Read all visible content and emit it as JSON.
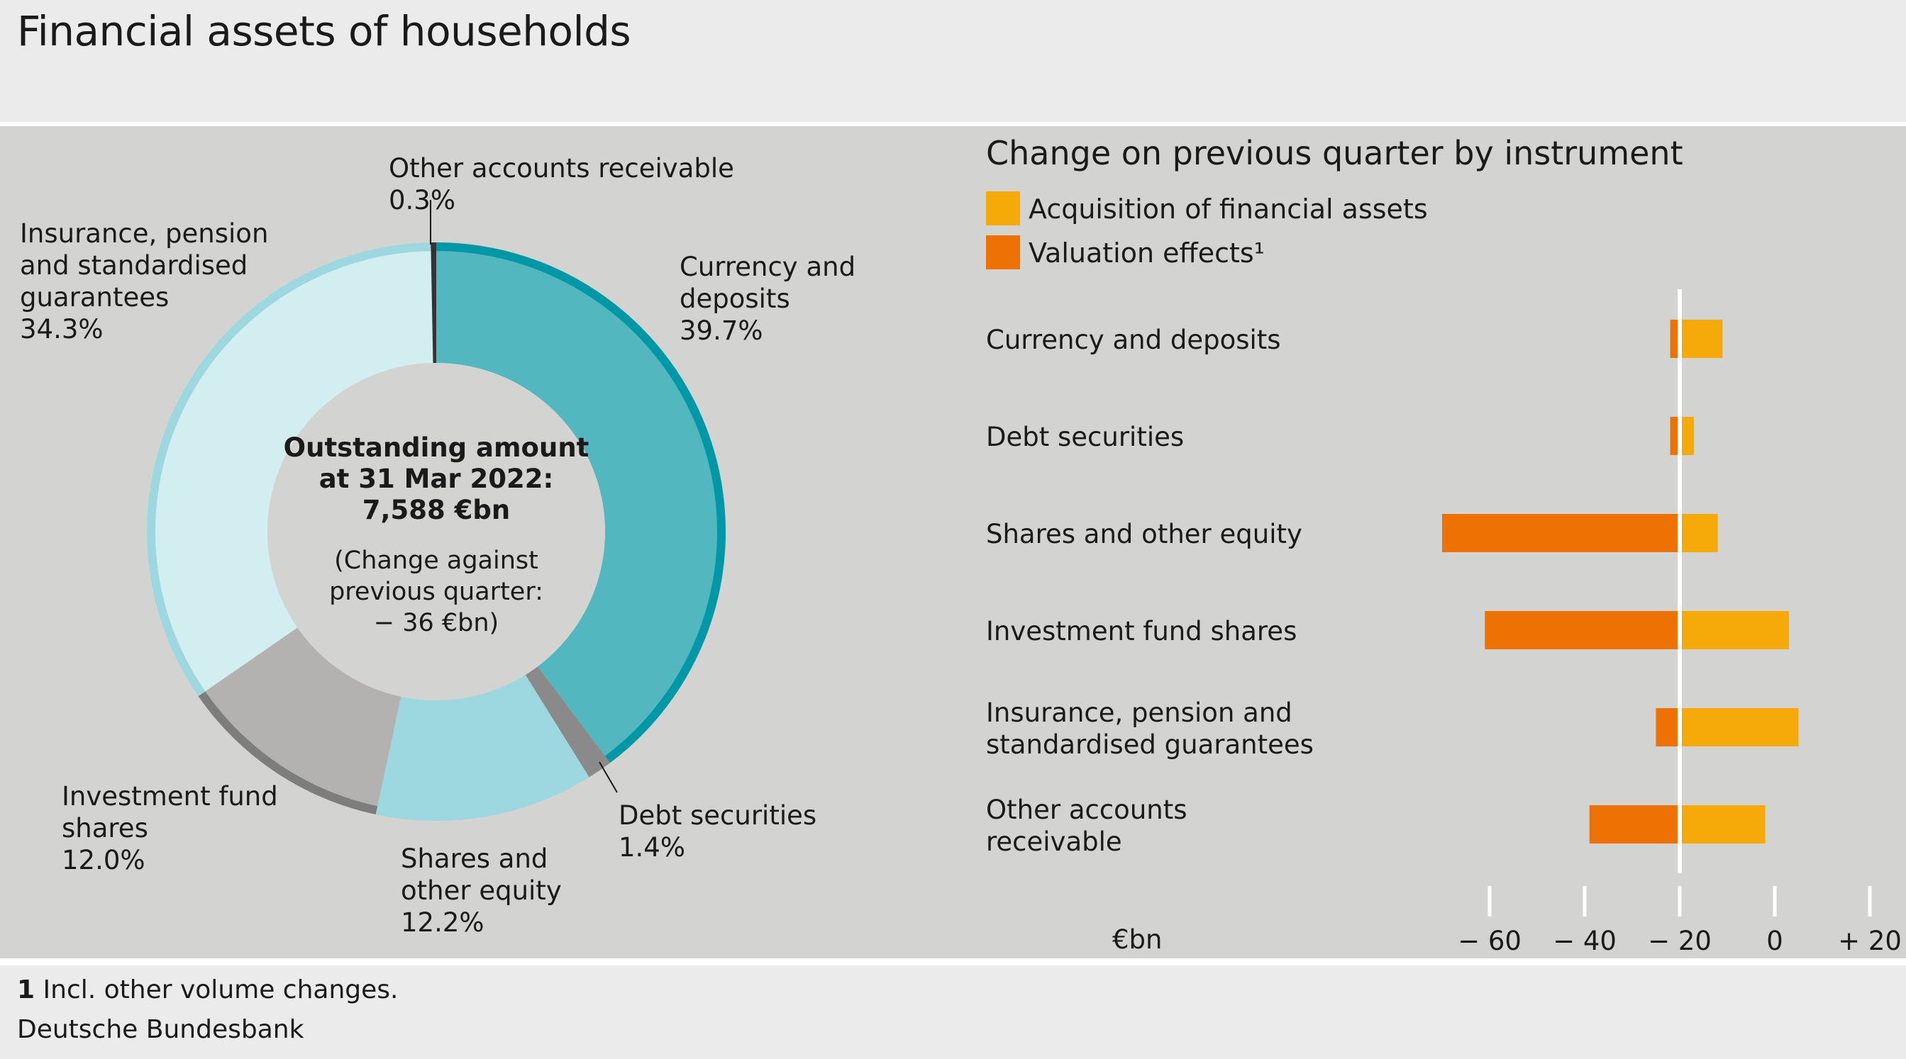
{
  "title": "Financial assets of households",
  "footnote": {
    "number": "1",
    "text": "Incl. other volume changes."
  },
  "source": "Deutsche Bundesbank",
  "colors": {
    "currency": "#52b7bf",
    "currency_rim": "#0097a7",
    "debt": "#8a8a8a",
    "shares": "#9dd7df",
    "fund": "#b3b2b1",
    "fund_rim": "#7d7d7d",
    "insurance": "#d2eef1",
    "insurance_rim": "#9dd7df",
    "other": "#333333",
    "acquisition": "#f5aa0a",
    "valuation": "#ee7203",
    "zero_line": "#ffffff"
  },
  "chart_data": [
    {
      "type": "pie",
      "center_text": {
        "line1": "Outstanding amount",
        "line2": "at 31 Mar 2022:",
        "line3": "7,588 €bn",
        "line4": "(Change against",
        "line5": "previous quarter:",
        "line6": "− 36 €bn)"
      },
      "slices": [
        {
          "name": "Currency and deposits",
          "label_lines": [
            "Currency and",
            "deposits"
          ],
          "value_label": "39.7%",
          "value": 39.7
        },
        {
          "name": "Debt securities",
          "label_lines": [
            "Debt securities"
          ],
          "value_label": "1.4%",
          "value": 1.4
        },
        {
          "name": "Shares and other equity",
          "label_lines": [
            "Shares and",
            "other equity"
          ],
          "value_label": "12.2%",
          "value": 12.2
        },
        {
          "name": "Investment fund shares",
          "label_lines": [
            "Investment fund",
            "shares"
          ],
          "value_label": "12.0%",
          "value": 12.0
        },
        {
          "name": "Insurance, pension and standardised guarantees",
          "label_lines": [
            "Insurance, pension",
            "and standardised",
            "guarantees"
          ],
          "value_label": "34.3%",
          "value": 34.3
        },
        {
          "name": "Other accounts receivable",
          "label_lines": [
            "Other accounts receivable"
          ],
          "value_label": "0.3%",
          "value": 0.3
        }
      ]
    },
    {
      "type": "bar",
      "orientation": "horizontal",
      "stacked": true,
      "title": "Change on previous quarter by instrument",
      "unit_label": "€bn",
      "categories": [
        [
          "Currency and deposits"
        ],
        [
          "Debt securities"
        ],
        [
          "Shares and other equity"
        ],
        [
          "Investment fund shares"
        ],
        [
          "Insurance, pension and",
          "standardised guarantees"
        ],
        [
          "Other accounts",
          "receivable"
        ]
      ],
      "series": [
        {
          "name": "Acquisition of financial assets",
          "values": [
            9,
            3,
            8,
            23,
            25,
            18
          ]
        },
        {
          "name": "Valuation effects¹",
          "values": [
            -2,
            -2,
            -50,
            -41,
            -5,
            -19
          ]
        }
      ],
      "xlim": [
        -63,
        22
      ],
      "ticks": [
        -60,
        -40,
        -20,
        0,
        20
      ],
      "tick_labels": [
        "− 60",
        "− 40",
        "− 20",
        "0",
        "+ 20"
      ]
    }
  ]
}
